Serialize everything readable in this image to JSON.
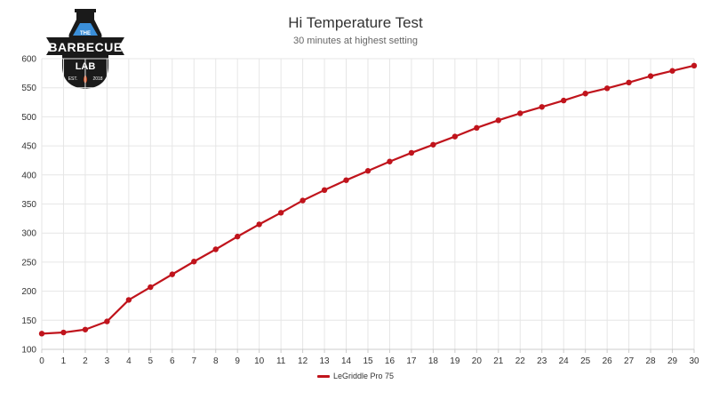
{
  "colors": {
    "series": "#c0141c",
    "grid": "#e6e6e6",
    "axis": "#cccccc",
    "tick_text": "#333333"
  },
  "logo": {
    "icon": "barbecue-lab-logo",
    "top_text": "THE",
    "brand_line1": "BARBECUE",
    "brand_line2": "LAB",
    "est_left": "EST.",
    "est_right": "2018"
  },
  "chart_data": {
    "type": "line",
    "title": "Hi Temperature Test",
    "subtitle": "30 minutes at highest setting",
    "xlabel": "",
    "ylabel": "",
    "x": [
      0,
      1,
      2,
      3,
      4,
      5,
      6,
      7,
      8,
      9,
      10,
      11,
      12,
      13,
      14,
      15,
      16,
      17,
      18,
      19,
      20,
      21,
      22,
      23,
      24,
      25,
      26,
      27,
      28,
      29,
      30
    ],
    "xlim": [
      0,
      30
    ],
    "ylim": [
      100,
      600
    ],
    "y_ticks": [
      100,
      150,
      200,
      250,
      300,
      350,
      400,
      450,
      500,
      550,
      600
    ],
    "grid": true,
    "legend_position": "bottom-center",
    "series": [
      {
        "name": "LeGriddle Pro 75",
        "values": [
          127,
          129,
          134,
          148,
          185,
          207,
          229,
          251,
          272,
          294,
          315,
          335,
          356,
          374,
          391,
          407,
          423,
          438,
          452,
          466,
          481,
          494,
          506,
          517,
          528,
          540,
          549,
          559,
          570,
          579,
          588
        ]
      }
    ]
  }
}
